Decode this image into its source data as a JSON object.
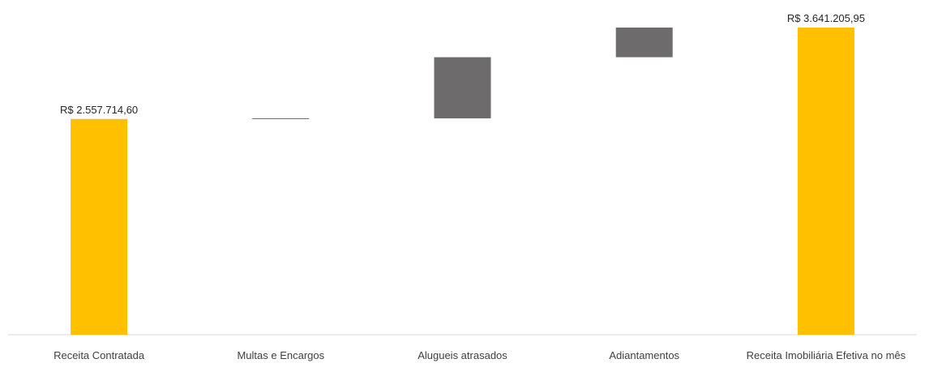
{
  "chart_data": {
    "type": "waterfall",
    "categories": [
      "Receita Contratada",
      "Multas e Encargos",
      "Alugueis atrasados",
      "Adiantamentos",
      "Receita Imobiliária Efetiva no mês"
    ],
    "bars": [
      {
        "kind": "total",
        "start": 0,
        "end": 2557714.6,
        "label": "R$ 2.557.714,60"
      },
      {
        "kind": "delta",
        "start": 2557714.6,
        "end": 2565000,
        "label": ""
      },
      {
        "kind": "delta",
        "start": 2565000,
        "end": 3290000,
        "label": ""
      },
      {
        "kind": "delta",
        "start": 3290000,
        "end": 3641205.95,
        "label": ""
      },
      {
        "kind": "total",
        "start": 0,
        "end": 3641205.95,
        "label": "R$ 3.641.205,95"
      }
    ],
    "ylim": [
      0,
      3641205.95
    ],
    "grid": false,
    "legend": "none",
    "colors": {
      "total": "#FFC000",
      "delta": "#6D6B6C",
      "axis": "#D9D9D9"
    }
  }
}
